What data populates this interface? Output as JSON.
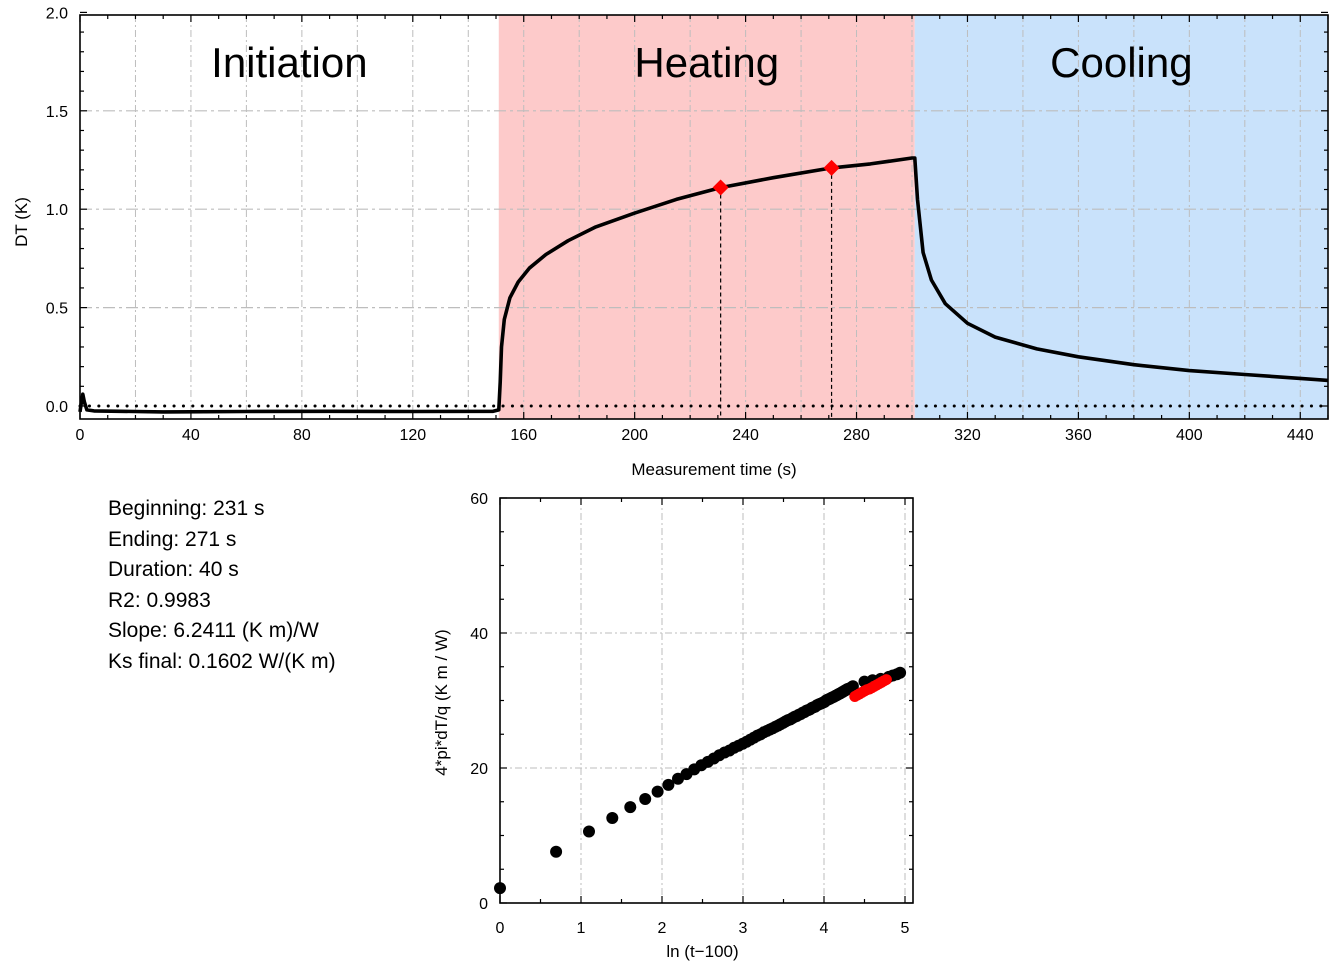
{
  "stats": {
    "beginning": "Beginning: 231 s",
    "ending": "Ending: 271 s",
    "duration": "Duration: 40 s",
    "r2": "R2: 0.9983",
    "slope": "Slope: 6.2411 (K m)/W",
    "ks_final": "Ks final: 0.1602 W/(K m)"
  },
  "chart_data": [
    {
      "type": "line",
      "title": "",
      "xlabel": "Measurement time (s)",
      "ylabel": "DT (K)",
      "xlim": [
        0,
        450
      ],
      "ylim": [
        -0.05,
        2.0
      ],
      "xticks": [
        0,
        40,
        80,
        120,
        160,
        200,
        240,
        280,
        320,
        360,
        400,
        440
      ],
      "yticks": [
        0.0,
        0.5,
        1.0,
        1.5,
        2.0
      ],
      "ytick_labels": [
        "0.0",
        "0.5",
        "1.0",
        "1.5",
        "2.0"
      ],
      "grid": true,
      "phases": [
        {
          "label": "Initiation",
          "x_start": 0,
          "x_end": 151,
          "color": "#ffffff"
        },
        {
          "label": "Heating",
          "x_start": 151,
          "x_end": 301,
          "color": "#fdcaca"
        },
        {
          "label": "Cooling",
          "x_start": 301,
          "x_end": 450,
          "color": "#c9e2fb"
        }
      ],
      "series": [
        {
          "color": "#000000",
          "x": [
            0,
            0.6,
            1.0,
            1.6,
            2.5,
            5,
            30,
            60,
            90,
            120,
            149,
            151,
            151.5,
            152,
            153,
            155,
            158,
            162,
            168,
            176,
            186,
            200,
            215,
            231,
            250,
            271,
            285,
            300,
            301,
            302,
            304,
            307,
            312,
            320,
            330,
            345,
            360,
            380,
            400,
            420,
            440,
            450
          ],
          "y": [
            -0.03,
            0.03,
            0.06,
            0.02,
            -0.02,
            -0.025,
            -0.03,
            -0.028,
            -0.027,
            -0.028,
            -0.027,
            -0.02,
            0.12,
            0.3,
            0.44,
            0.55,
            0.63,
            0.7,
            0.77,
            0.84,
            0.91,
            0.98,
            1.05,
            1.11,
            1.16,
            1.21,
            1.23,
            1.26,
            1.26,
            1.05,
            0.78,
            0.64,
            0.52,
            0.42,
            0.35,
            0.29,
            0.25,
            0.21,
            0.18,
            0.16,
            0.14,
            0.13
          ]
        },
        {
          "color": "#000000",
          "style": "dotted",
          "x": [
            0,
            450
          ],
          "y": [
            0,
            0
          ]
        }
      ],
      "markers": [
        {
          "x": 231,
          "y": 1.11,
          "color": "#ff0000"
        },
        {
          "x": 271,
          "y": 1.21,
          "color": "#ff0000"
        }
      ]
    },
    {
      "type": "scatter",
      "title": "",
      "xlabel": "ln (t−100)",
      "ylabel": "4*pi*dT/q (K m / W)",
      "xlim": [
        0,
        5.1
      ],
      "ylim": [
        0,
        60
      ],
      "xticks": [
        0,
        1,
        2,
        3,
        4,
        5
      ],
      "yticks": [
        0,
        20,
        40,
        60
      ],
      "grid": true,
      "series": [
        {
          "color": "#000000",
          "x": [
            0.0,
            0.693,
            1.099,
            1.386,
            1.609,
            1.792,
            1.946,
            2.079,
            2.197,
            2.303,
            2.398,
            2.485,
            2.565,
            2.639,
            2.708,
            2.773,
            2.833,
            2.89,
            2.944,
            2.996,
            3.045,
            3.091,
            3.136,
            3.178,
            3.219,
            3.258,
            3.296,
            3.332,
            3.367,
            3.401,
            3.434,
            3.466,
            3.497,
            3.526,
            3.555,
            3.584,
            3.611,
            3.638,
            3.664,
            3.689,
            3.714,
            3.738,
            3.761,
            3.784,
            3.807,
            3.829,
            3.85,
            3.871,
            3.892,
            3.912,
            3.932,
            3.951,
            3.97,
            3.989,
            4.007,
            4.025,
            4.043,
            4.06,
            4.078,
            4.094,
            4.111,
            4.127,
            4.143,
            4.159,
            4.174,
            4.19,
            4.205,
            4.22,
            4.234,
            4.248,
            4.263,
            4.277,
            4.29,
            4.304,
            4.317,
            4.331,
            4.344,
            4.357,
            4.5,
            4.6,
            4.7,
            4.8,
            4.85,
            4.9,
            4.94
          ],
          "y": [
            2.2,
            7.6,
            10.6,
            12.6,
            14.2,
            15.4,
            16.5,
            17.5,
            18.4,
            19.1,
            19.8,
            20.4,
            20.9,
            21.4,
            21.9,
            22.3,
            22.6,
            23.0,
            23.3,
            23.6,
            23.9,
            24.2,
            24.5,
            24.8,
            25.0,
            25.3,
            25.5,
            25.7,
            25.9,
            26.1,
            26.3,
            26.5,
            26.7,
            26.9,
            27.1,
            27.2,
            27.4,
            27.6,
            27.7,
            27.9,
            28.0,
            28.2,
            28.3,
            28.5,
            28.6,
            28.7,
            28.9,
            29.0,
            29.1,
            29.3,
            29.4,
            29.5,
            29.6,
            29.7,
            29.8,
            30.0,
            30.1,
            30.2,
            30.3,
            30.4,
            30.5,
            30.6,
            30.7,
            30.8,
            30.9,
            31.0,
            31.1,
            31.2,
            31.3,
            31.4,
            31.5,
            31.6,
            31.7,
            31.7,
            31.8,
            31.9,
            32.0,
            32.1,
            32.8,
            33.0,
            33.2,
            33.5,
            33.7,
            33.9,
            34.1
          ]
        },
        {
          "color": "#ff0000",
          "x": [
            4.38,
            4.41,
            4.44,
            4.47,
            4.5,
            4.53,
            4.56,
            4.59,
            4.62,
            4.65,
            4.68,
            4.71,
            4.74,
            4.77
          ],
          "y": [
            30.6,
            30.8,
            31.0,
            31.2,
            31.4,
            31.6,
            31.7,
            31.9,
            32.1,
            32.3,
            32.5,
            32.7,
            32.9,
            33.1
          ]
        }
      ]
    }
  ]
}
